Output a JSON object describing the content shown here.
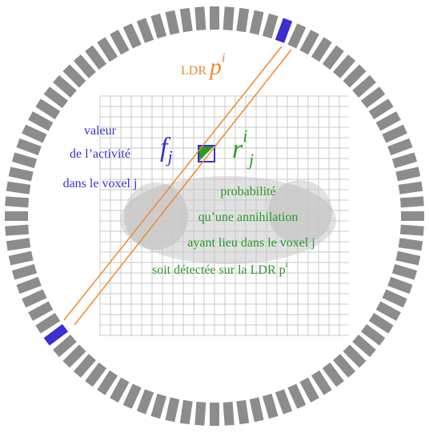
{
  "ldr_label": {
    "text": "LDR",
    "symbol": "p",
    "superscript": "i"
  },
  "activity": {
    "lines": [
      "valeur",
      "de l’activité",
      "dans le voxel j"
    ]
  },
  "f_symbol": {
    "symbol": "f",
    "subscript": "j"
  },
  "r_symbol": {
    "symbol": "r",
    "superscript": "i",
    "subscript": "j"
  },
  "probability": {
    "lines": [
      "probabilité",
      "qu’une annihilation",
      "ayant lieu dans le voxel j"
    ],
    "last_line": {
      "text": "soit détectée sur la LDR p",
      "superscript": "i"
    }
  }
}
